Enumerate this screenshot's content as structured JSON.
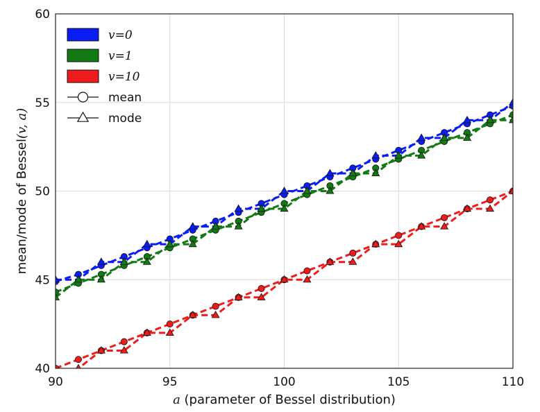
{
  "chart_data": {
    "type": "line",
    "title": "",
    "xlabel": {
      "math": "a",
      "text": " (parameter of Bessel distribution)"
    },
    "ylabel": {
      "prefix": "mean/mode of Bessel",
      "math": "(v, a)"
    },
    "xlim": [
      90,
      110
    ],
    "ylim": [
      40,
      60
    ],
    "xticks": [
      90,
      95,
      100,
      105,
      110
    ],
    "yticks": [
      40,
      45,
      50,
      55,
      60
    ],
    "xtick_labels": [
      "90",
      "95",
      "100",
      "105",
      "110"
    ],
    "ytick_labels": [
      "40",
      "45",
      "50",
      "55",
      "60"
    ],
    "grid": true,
    "legend": {
      "placement": "top-left",
      "entries": [
        {
          "label": "v=0",
          "kind": "patch",
          "color": "#0a1df5"
        },
        {
          "label": "v=1",
          "kind": "patch",
          "color": "#127a12"
        },
        {
          "label": "v=10",
          "kind": "patch",
          "color": "#ee1c1c"
        },
        {
          "label": "mean",
          "kind": "marker",
          "marker": "circle"
        },
        {
          "label": "mode",
          "kind": "marker",
          "marker": "triangle"
        }
      ]
    },
    "x": [
      90,
      91,
      92,
      93,
      94,
      95,
      96,
      97,
      98,
      99,
      100,
      101,
      102,
      103,
      104,
      105,
      106,
      107,
      108,
      109,
      110
    ],
    "series": [
      {
        "group": "v=0",
        "stat": "mean",
        "marker": "circle",
        "color": "#0a1df5",
        "values": [
          44.9,
          45.3,
          45.8,
          46.3,
          46.8,
          47.3,
          47.8,
          48.3,
          48.8,
          49.3,
          49.8,
          50.3,
          50.8,
          51.3,
          51.8,
          52.3,
          52.8,
          53.3,
          53.8,
          54.3,
          54.8
        ]
      },
      {
        "group": "v=0",
        "stat": "mode",
        "marker": "triangle",
        "color": "#0a1df5",
        "values": [
          45.0,
          45.0,
          46.0,
          46.0,
          47.0,
          47.0,
          48.0,
          48.0,
          49.0,
          49.0,
          50.0,
          50.0,
          51.0,
          51.0,
          52.0,
          52.0,
          53.0,
          53.0,
          54.0,
          54.0,
          55.0
        ]
      },
      {
        "group": "v=1",
        "stat": "mean",
        "marker": "circle",
        "color": "#127a12",
        "values": [
          44.3,
          44.8,
          45.3,
          45.8,
          46.3,
          46.8,
          47.3,
          47.8,
          48.3,
          48.8,
          49.3,
          49.8,
          50.3,
          50.8,
          51.3,
          51.8,
          52.3,
          52.8,
          53.3,
          53.8,
          54.3
        ]
      },
      {
        "group": "v=1",
        "stat": "mode",
        "marker": "triangle",
        "color": "#127a12",
        "values": [
          44.0,
          45.0,
          45.0,
          46.0,
          46.0,
          47.0,
          47.0,
          48.0,
          48.0,
          49.0,
          49.0,
          50.0,
          50.0,
          51.0,
          51.0,
          52.0,
          52.0,
          53.0,
          53.0,
          54.0,
          54.0
        ]
      },
      {
        "group": "v=10",
        "stat": "mean",
        "marker": "circle",
        "color": "#ee1c1c",
        "values": [
          40.0,
          40.5,
          41.0,
          41.5,
          42.0,
          42.5,
          43.0,
          43.5,
          44.0,
          44.5,
          45.0,
          45.5,
          46.0,
          46.5,
          47.0,
          47.5,
          48.0,
          48.5,
          49.0,
          49.5,
          50.0
        ]
      },
      {
        "group": "v=10",
        "stat": "mode",
        "marker": "triangle",
        "color": "#ee1c1c",
        "values": [
          39.6,
          40.0,
          41.0,
          41.0,
          42.0,
          42.0,
          43.0,
          43.0,
          44.0,
          44.0,
          45.0,
          45.0,
          46.0,
          46.0,
          47.0,
          47.0,
          48.0,
          48.0,
          49.0,
          49.0,
          50.0
        ]
      }
    ]
  }
}
